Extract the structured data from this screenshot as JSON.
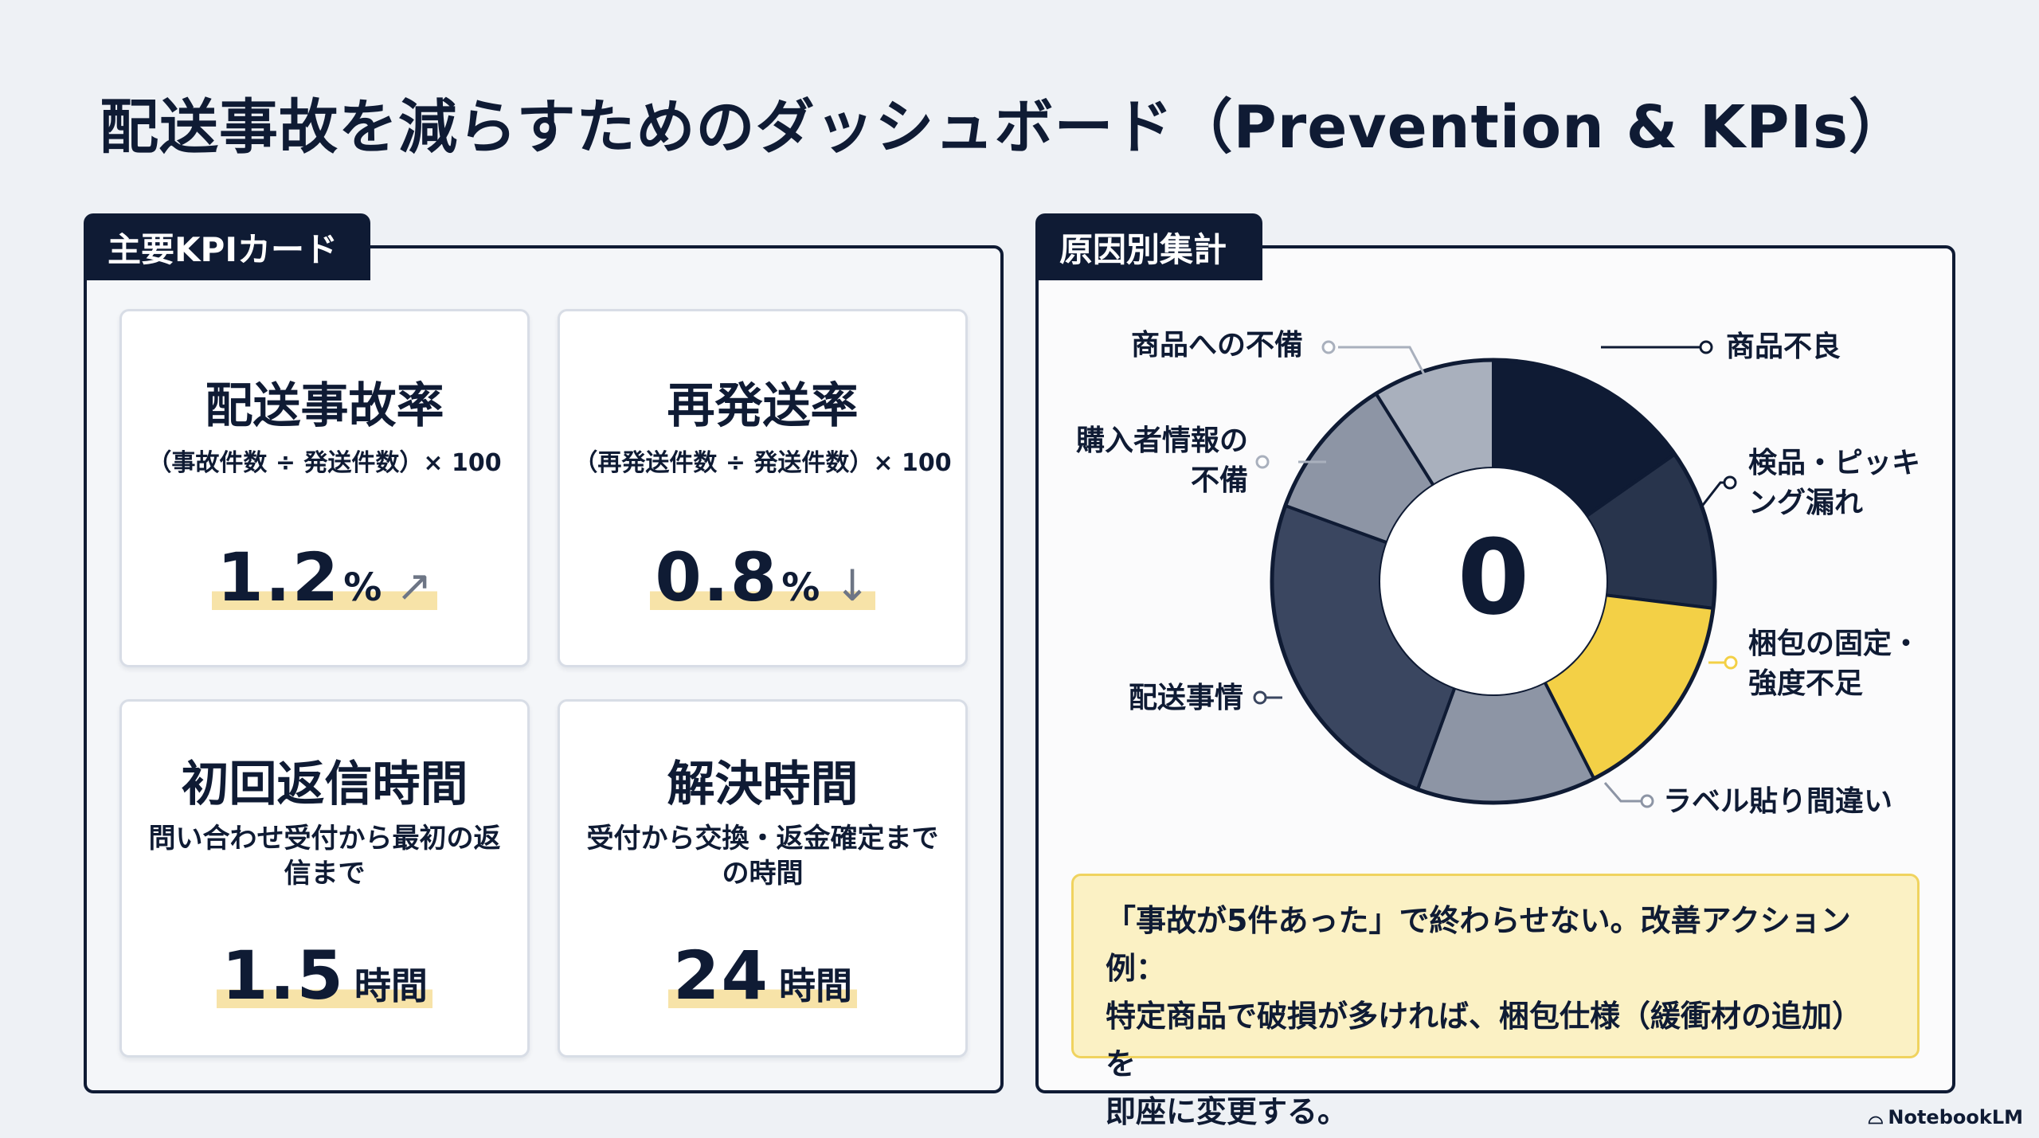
{
  "title": "配送事故を減らすためのダッシュボード（Prevention & KPIs）",
  "kpi_panel": {
    "tab": "主要KPIカード",
    "cards": [
      {
        "name": "配送事故率",
        "formula": "（事故件数 ÷ 発送件数）× 100",
        "value": "1.2",
        "unit": "%",
        "trend_icon": "arrow-up-right"
      },
      {
        "name": "再発送率",
        "formula": "（再発送件数 ÷ 発送件数）× 100",
        "value": "0.8",
        "unit": "%",
        "trend_icon": "arrow-down"
      },
      {
        "name": "初回返信時間",
        "desc": "問い合わせ受付から最初の返信まで",
        "value": "1.5",
        "unit": "時間"
      },
      {
        "name": "解決時間",
        "desc": "受付から交換・返金確定までの時間",
        "value": "24",
        "unit": "時間"
      }
    ]
  },
  "cause_panel": {
    "tab": "原因別集計",
    "center_value": "0",
    "labels": {
      "defect": "商品不良",
      "inspection_1": "検品・ピッキ",
      "inspection_2": "ング漏れ",
      "packing_1": "梱包の固定・",
      "packing_2": "強度不足",
      "label_error": "ラベル貼り間違い",
      "shipping": "配送事情",
      "buyer_info_1": "購入者情報の",
      "buyer_info_2": "不備",
      "product_issue": "商品への不備"
    },
    "colors": {
      "navy": "#0f1b34",
      "dark": "#28344c",
      "slate": "#3a4660",
      "gray": "#8d95a5",
      "light": "#a9b0bd",
      "yellow": "#f3d046"
    },
    "note": {
      "line1": "「事故が5件あった」で終わらせない。改善アクション例：",
      "line2": "特定商品で破損が多ければ、梱包仕様（緩衝材の追加）を",
      "line3": "即座に変更する。"
    }
  },
  "brand": "NotebookLM"
}
